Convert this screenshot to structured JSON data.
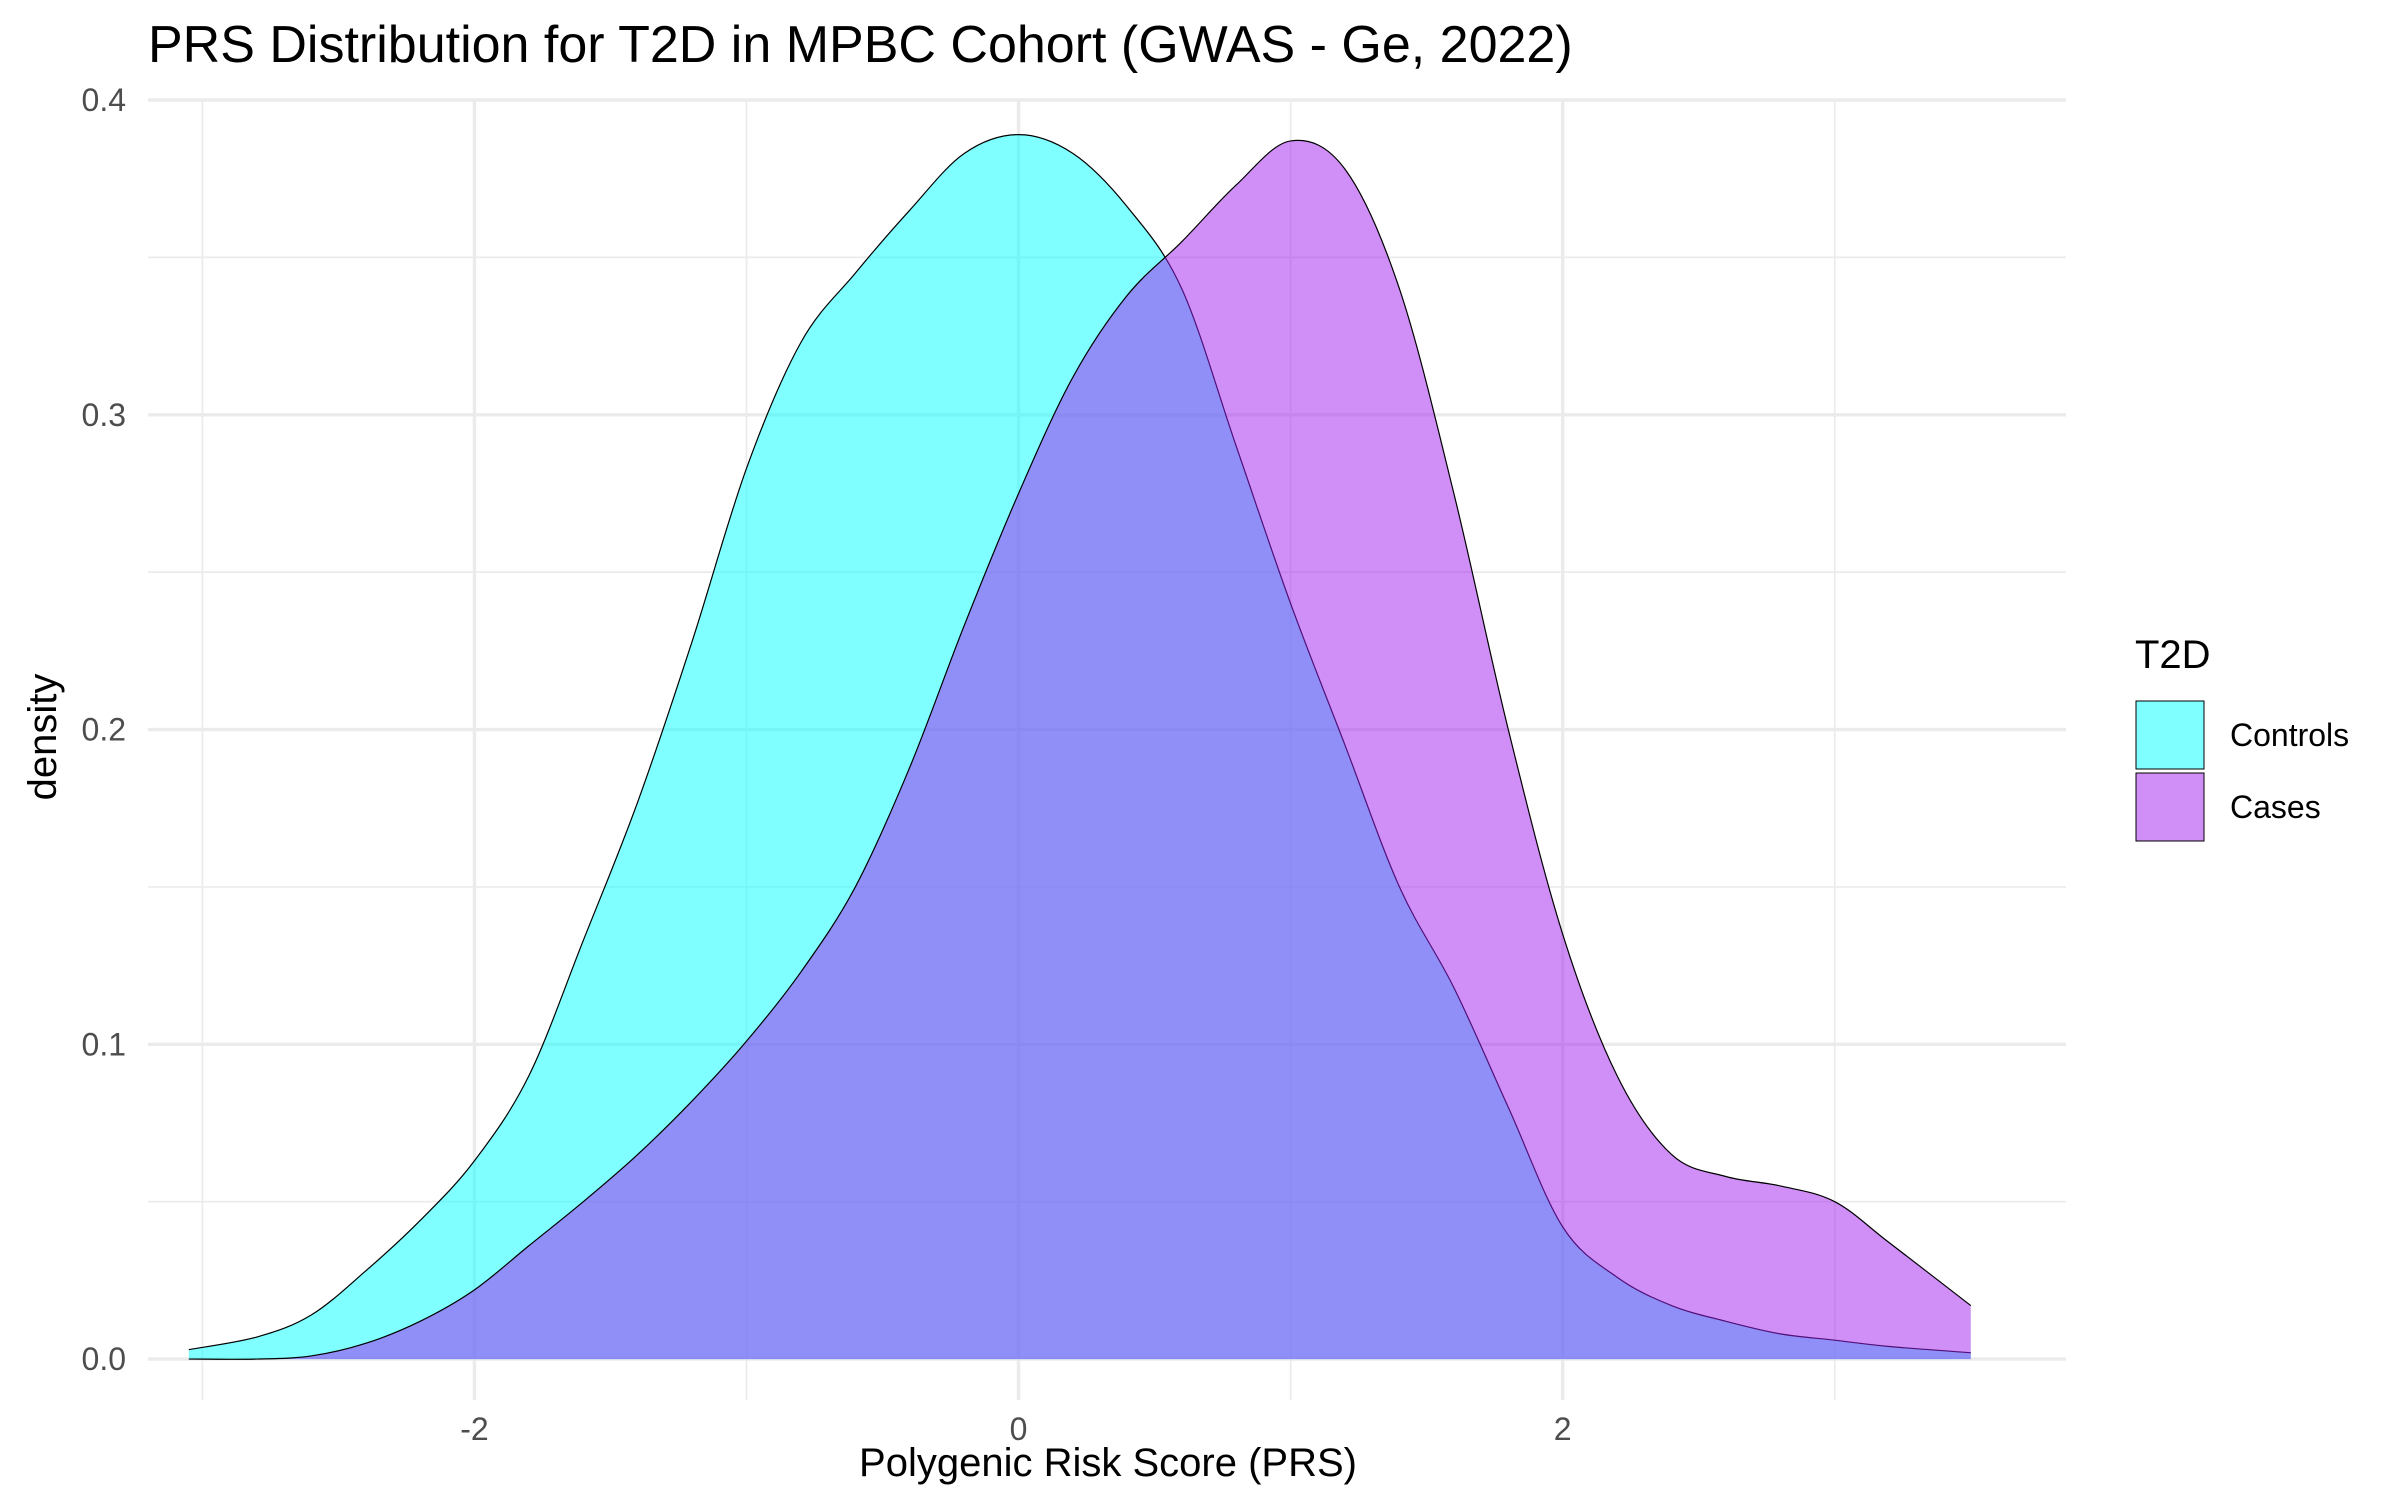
{
  "chart_data": {
    "type": "area",
    "title": "PRS Distribution for T2D in MPBC Cohort (GWAS - Ge, 2022)",
    "xlabel": "Polygenic Risk Score (PRS)",
    "ylabel": "density",
    "xlim": [
      -3.2,
      3.85
    ],
    "ylim": [
      -0.013,
      0.4
    ],
    "x_ticks": [
      -2,
      0,
      2
    ],
    "x_tick_labels": [
      "-2",
      "0",
      "2"
    ],
    "y_ticks": [
      0,
      0.1,
      0.2,
      0.3,
      0.4
    ],
    "y_tick_labels": [
      "0.0",
      "0.1",
      "0.2",
      "0.3",
      "0.4"
    ],
    "grid": true,
    "legend": {
      "title": "T2D",
      "position": "right"
    },
    "series": [
      {
        "name": "Controls",
        "color": "#00FFFF",
        "opacity": 0.5,
        "x": [
          -3.05,
          -2.8,
          -2.6,
          -2.4,
          -2.2,
          -2.0,
          -1.8,
          -1.6,
          -1.4,
          -1.2,
          -1.0,
          -0.8,
          -0.6,
          -0.4,
          -0.2,
          0.0,
          0.2,
          0.4,
          0.6,
          0.8,
          1.0,
          1.2,
          1.4,
          1.6,
          1.8,
          2.0,
          2.2,
          2.4,
          2.6,
          2.8,
          3.0,
          3.2,
          3.5
        ],
        "values": [
          0.003,
          0.007,
          0.014,
          0.028,
          0.044,
          0.063,
          0.09,
          0.133,
          0.177,
          0.228,
          0.283,
          0.323,
          0.345,
          0.365,
          0.383,
          0.389,
          0.383,
          0.366,
          0.34,
          0.29,
          0.24,
          0.195,
          0.15,
          0.118,
          0.08,
          0.042,
          0.026,
          0.017,
          0.012,
          0.008,
          0.006,
          0.004,
          0.002
        ]
      },
      {
        "name": "Cases",
        "color": "#A020F0",
        "opacity": 0.5,
        "x": [
          -3.05,
          -2.8,
          -2.6,
          -2.4,
          -2.2,
          -2.0,
          -1.8,
          -1.6,
          -1.4,
          -1.2,
          -1.0,
          -0.8,
          -0.6,
          -0.4,
          -0.2,
          0.0,
          0.2,
          0.4,
          0.6,
          0.8,
          1.0,
          1.2,
          1.4,
          1.6,
          1.8,
          2.0,
          2.2,
          2.4,
          2.6,
          2.8,
          3.0,
          3.2,
          3.5
        ],
        "values": [
          0.0,
          0.0,
          0.001,
          0.005,
          0.012,
          0.022,
          0.036,
          0.05,
          0.065,
          0.082,
          0.101,
          0.123,
          0.15,
          0.188,
          0.233,
          0.275,
          0.312,
          0.338,
          0.355,
          0.373,
          0.387,
          0.378,
          0.34,
          0.275,
          0.2,
          0.135,
          0.09,
          0.065,
          0.058,
          0.055,
          0.05,
          0.037,
          0.017
        ]
      }
    ]
  }
}
